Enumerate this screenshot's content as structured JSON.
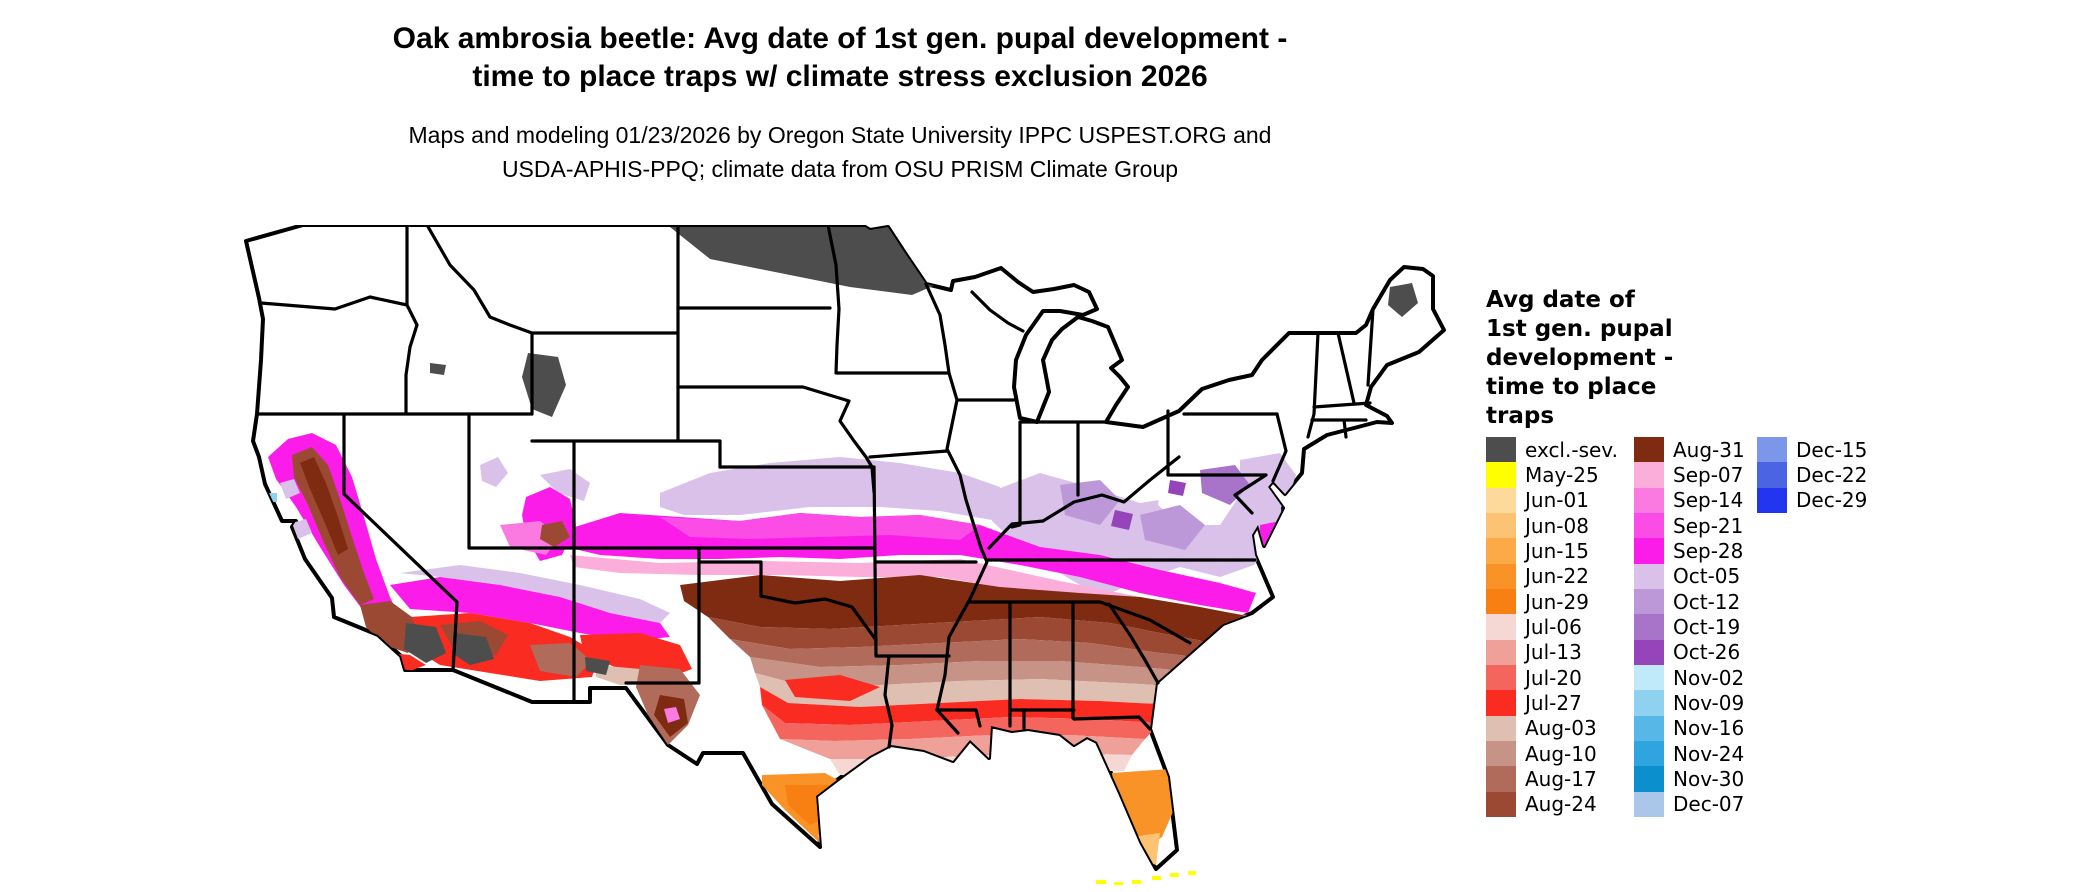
{
  "title": {
    "line1": "Oak ambrosia beetle: Avg date of 1st gen. pupal development -",
    "line2": "time to place traps w/ climate stress exclusion 2026"
  },
  "subtitle": {
    "line1": "Maps and modeling 01/23/2026 by Oregon State University IPPC USPEST.ORG and",
    "line2": "USDA-APHIS-PPQ; climate data from OSU PRISM Climate Group"
  },
  "legend": {
    "title_lines": [
      "Avg date of",
      "1st gen. pupal",
      "development -",
      "time to place",
      "traps"
    ],
    "columns": [
      {
        "entries": [
          {
            "label": "excl.-sev.",
            "color": "#4d4d4d"
          },
          {
            "label": "May-25",
            "color": "#ffff00"
          },
          {
            "label": "Jun-01",
            "color": "#fdd99b"
          },
          {
            "label": "Jun-08",
            "color": "#fcc374"
          },
          {
            "label": "Jun-15",
            "color": "#fbaa47"
          },
          {
            "label": "Jun-22",
            "color": "#fa9327"
          },
          {
            "label": "Jun-29",
            "color": "#f87f12"
          },
          {
            "label": "Jul-06",
            "color": "#f5d7d4"
          },
          {
            "label": "Jul-13",
            "color": "#efa099"
          },
          {
            "label": "Jul-20",
            "color": "#f4655e"
          },
          {
            "label": "Jul-27",
            "color": "#fa2b20"
          },
          {
            "label": "Aug-03",
            "color": "#dfbfb2"
          },
          {
            "label": "Aug-10",
            "color": "#c79386"
          },
          {
            "label": "Aug-17",
            "color": "#b06b5b"
          },
          {
            "label": "Aug-24",
            "color": "#9c4934"
          }
        ]
      },
      {
        "entries": [
          {
            "label": "Aug-31",
            "color": "#7e2b11"
          },
          {
            "label": "Sep-07",
            "color": "#fbaeda"
          },
          {
            "label": "Sep-14",
            "color": "#fb7ae2"
          },
          {
            "label": "Sep-21",
            "color": "#fb4de6"
          },
          {
            "label": "Sep-28",
            "color": "#fb1cea"
          },
          {
            "label": "Oct-05",
            "color": "#dac1e9"
          },
          {
            "label": "Oct-12",
            "color": "#bd98d8"
          },
          {
            "label": "Oct-19",
            "color": "#a874ca"
          },
          {
            "label": "Oct-26",
            "color": "#9544b9"
          },
          {
            "label": "Nov-02",
            "color": "#c0eafa"
          },
          {
            "label": "Nov-09",
            "color": "#8fd2ef"
          },
          {
            "label": "Nov-16",
            "color": "#57b7e6"
          },
          {
            "label": "Nov-24",
            "color": "#2fa4de"
          },
          {
            "label": "Nov-30",
            "color": "#0c8fcd"
          },
          {
            "label": "Dec-07",
            "color": "#aac7e9"
          }
        ]
      },
      {
        "entries": [
          {
            "label": "Dec-15",
            "color": "#7c97e9"
          },
          {
            "label": "Dec-22",
            "color": "#4b64e4"
          },
          {
            "label": "Dec-29",
            "color": "#2235ef"
          }
        ]
      }
    ]
  },
  "map": {
    "background": "#ffffff",
    "border_color": "#000000"
  }
}
